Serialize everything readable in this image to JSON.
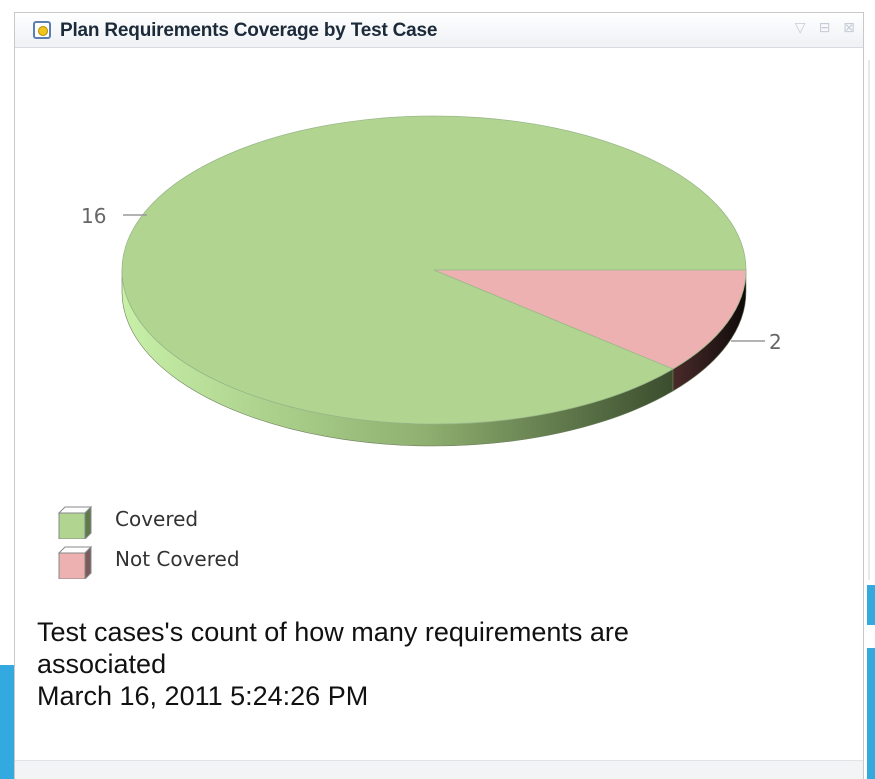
{
  "panel": {
    "title": "Plan Requirements Coverage by Test Case",
    "controls": {
      "menu": "▽",
      "maximize": "⊟",
      "close": "⊠"
    }
  },
  "chart_data": {
    "type": "pie",
    "title": "",
    "categories": [
      "Covered",
      "Not Covered"
    ],
    "values": [
      16,
      2
    ],
    "data_labels": [
      "16",
      "2"
    ],
    "colors": [
      "#b1d591",
      "#eeb1b1"
    ],
    "legend": "bottom-left",
    "style": "3d"
  },
  "footer": {
    "description_line1": "Test cases's count of how many requirements are",
    "description_line2": "associated",
    "timestamp": "March 16, 2011 5:24:26 PM"
  }
}
